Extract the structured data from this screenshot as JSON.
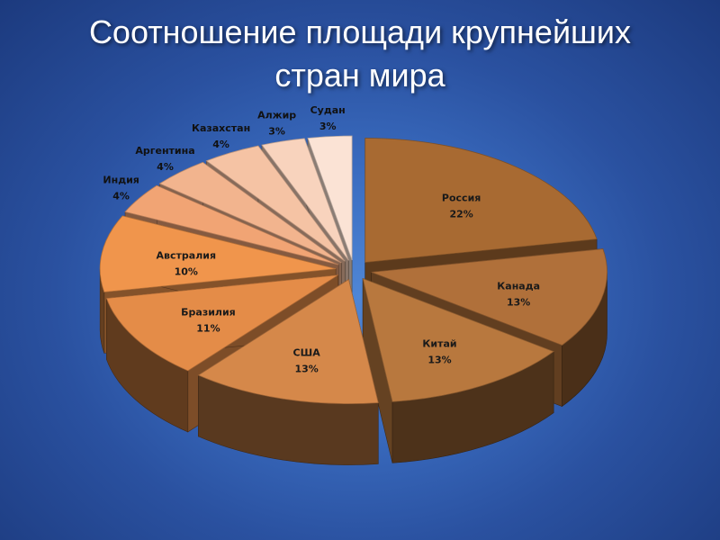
{
  "title_lines": [
    "Соотношение площади крупнейших",
    "стран мира"
  ],
  "chart_data": {
    "type": "pie",
    "title": "Соотношение площади крупнейших стран мира",
    "exploded": true,
    "three_d": true,
    "slices": [
      {
        "label": "Россия",
        "value": 22,
        "pct_text": "22%",
        "color": "#a86a32"
      },
      {
        "label": "Канада",
        "value": 13,
        "pct_text": "13%",
        "color": "#b0703a"
      },
      {
        "label": "Китай",
        "value": 13,
        "pct_text": "13%",
        "color": "#b8783e"
      },
      {
        "label": "США",
        "value": 13,
        "pct_text": "13%",
        "color": "#d5884a"
      },
      {
        "label": "Бразилия",
        "value": 11,
        "pct_text": "11%",
        "color": "#e48c48"
      },
      {
        "label": "Австралия",
        "value": 10,
        "pct_text": "10%",
        "color": "#f0954c"
      },
      {
        "label": "Индия",
        "value": 4,
        "pct_text": "4%",
        "color": "#f1a474"
      },
      {
        "label": "Аргентина",
        "value": 4,
        "pct_text": "4%",
        "color": "#f2b48e"
      },
      {
        "label": "Казахстан",
        "value": 4,
        "pct_text": "4%",
        "color": "#f5c3a4"
      },
      {
        "label": "Алжир",
        "value": 3,
        "pct_text": "3%",
        "color": "#f8d3bd"
      },
      {
        "label": "Судан",
        "value": 3,
        "pct_text": "3%",
        "color": "#fbe3d5"
      }
    ]
  }
}
